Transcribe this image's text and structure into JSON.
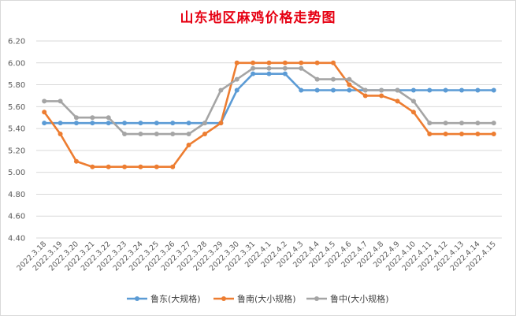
{
  "chart_data": {
    "type": "line",
    "title": "山东地区麻鸡价格走势图",
    "xlabel": "",
    "ylabel": "",
    "ylim": [
      4.4,
      6.2
    ],
    "y_ticks": [
      "6.20",
      "6.00",
      "5.80",
      "5.60",
      "5.40",
      "5.20",
      "5.00",
      "4.80",
      "4.60",
      "4.40"
    ],
    "grid": "horizontal",
    "legend_position": "bottom",
    "categories": [
      "2022.3.18",
      "2022.3.19",
      "2022.3.20",
      "2022.3.21",
      "2022.3.22",
      "2022.3.23",
      "2022.3.24",
      "2022.3.25",
      "2022.3.26",
      "2022.3.27",
      "2022.3.28",
      "2022.3.29",
      "2022.3.30",
      "2022.3.31",
      "2022.4.1",
      "2022.4.2",
      "2022.4.3",
      "2022.4.4",
      "2022.4.5",
      "2022.4.6",
      "2022.4.7",
      "2022.4.8",
      "2022.4.9",
      "2022.4.10",
      "2022.4.11",
      "2022.4.12",
      "2022.4.13",
      "2022.4.14",
      "2022.4.15"
    ],
    "series": [
      {
        "name": "鲁东(大规格)",
        "color": "#5b9bd5",
        "values": [
          5.45,
          5.45,
          5.45,
          5.45,
          5.45,
          5.45,
          5.45,
          5.45,
          5.45,
          5.45,
          5.45,
          5.45,
          5.75,
          5.9,
          5.9,
          5.9,
          5.75,
          5.75,
          5.75,
          5.75,
          5.75,
          5.75,
          5.75,
          5.75,
          5.75,
          5.75,
          5.75,
          5.75,
          5.75
        ]
      },
      {
        "name": "鲁南(大小规格)",
        "color": "#ed7d31",
        "values": [
          5.55,
          5.35,
          5.1,
          5.05,
          5.05,
          5.05,
          5.05,
          5.05,
          5.05,
          5.25,
          5.35,
          5.45,
          6.0,
          6.0,
          6.0,
          6.0,
          6.0,
          6.0,
          6.0,
          5.8,
          5.7,
          5.7,
          5.65,
          5.55,
          5.35,
          5.35,
          5.35,
          5.35,
          5.35
        ]
      },
      {
        "name": "鲁中(大小规格)",
        "color": "#a5a5a5",
        "values": [
          5.65,
          5.65,
          5.5,
          5.5,
          5.5,
          5.35,
          5.35,
          5.35,
          5.35,
          5.35,
          5.45,
          5.75,
          5.85,
          5.95,
          5.95,
          5.95,
          5.95,
          5.85,
          5.85,
          5.85,
          5.75,
          5.75,
          5.75,
          5.65,
          5.45,
          5.45,
          5.45,
          5.45,
          5.45
        ]
      }
    ]
  }
}
